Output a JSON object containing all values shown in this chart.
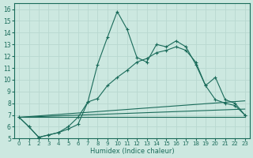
{
  "xlabel": "Humidex (Indice chaleur)",
  "bg_color": "#cce8e0",
  "line_color": "#1a6b5a",
  "grid_color": "#b8d8d0",
  "xlim": [
    -0.5,
    23.5
  ],
  "ylim": [
    5,
    16.5
  ],
  "xticks": [
    0,
    1,
    2,
    3,
    4,
    5,
    6,
    7,
    8,
    9,
    10,
    11,
    12,
    13,
    14,
    15,
    16,
    17,
    18,
    19,
    20,
    21,
    22,
    23
  ],
  "yticks": [
    5,
    6,
    7,
    8,
    9,
    10,
    11,
    12,
    13,
    14,
    15,
    16
  ],
  "line1_x": [
    0,
    1,
    2,
    3,
    4,
    5,
    6,
    7,
    8,
    9,
    10,
    11,
    12,
    13,
    14,
    15,
    16,
    17,
    18,
    19,
    20,
    21,
    22,
    23
  ],
  "line1_y": [
    6.8,
    6.0,
    5.1,
    5.3,
    5.5,
    5.8,
    6.2,
    8.1,
    11.3,
    13.6,
    15.8,
    14.3,
    11.9,
    11.5,
    13.0,
    12.8,
    13.3,
    12.8,
    11.3,
    9.5,
    10.2,
    8.3,
    8.0,
    7.0
  ],
  "line2_x": [
    0,
    1,
    2,
    3,
    4,
    5,
    6,
    7,
    8,
    9,
    10,
    11,
    12,
    13,
    14,
    15,
    16,
    17,
    18,
    19,
    20,
    21,
    22,
    23
  ],
  "line2_y": [
    6.8,
    6.0,
    5.1,
    5.3,
    5.5,
    6.0,
    6.8,
    8.1,
    8.4,
    9.5,
    10.2,
    10.8,
    11.5,
    11.8,
    12.3,
    12.5,
    12.8,
    12.5,
    11.5,
    9.5,
    8.3,
    8.0,
    7.8,
    7.0
  ],
  "line3_x": [
    0,
    23
  ],
  "line3_y": [
    6.8,
    6.8
  ],
  "line4_x": [
    0,
    23
  ],
  "line4_y": [
    6.8,
    7.5
  ],
  "line5_x": [
    0,
    23
  ],
  "line5_y": [
    6.8,
    8.2
  ]
}
